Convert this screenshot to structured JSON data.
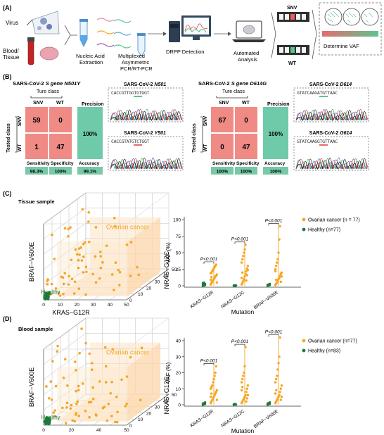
{
  "panel_labels": {
    "a": "(A)",
    "b": "(B)",
    "c": "(C)",
    "d": "(D)"
  },
  "workflow": {
    "virus": "Virus",
    "blood_tissue_1": "Blood/",
    "blood_tissue_2": "Tissue",
    "extraction_1": "Nucleic Acid",
    "extraction_2": "Extraction",
    "pcr_1": "Multiplexed",
    "pcr_2": "Asymmetric",
    "pcr_3": "PCR/RT-PCR",
    "drpp": "DRPP Detection",
    "auto_1": "Automated",
    "auto_2": "Analysis",
    "snv": "SNV",
    "wt": "WT",
    "vaf": "Determine VAF"
  },
  "confusion_left": {
    "title_prefix": "SARS-CoV-2 ",
    "title_italic": "S gene N501Y",
    "true_class": "Ture class",
    "tested_class": "Tested class",
    "col_snv": "SNV",
    "col_wt": "WT",
    "row_snv": "SNV",
    "row_wt": "WT",
    "precision_label": "Precision",
    "cells": [
      "59",
      "0",
      "1",
      "47"
    ],
    "precision": "100%",
    "sensitivity_label": "Sensitivity",
    "specificity_label": "Specificity",
    "accuracy_label": "Accuracy",
    "sensitivity": "98.3%",
    "specificity": "100%",
    "accuracy": "99.1%",
    "trace1_prefix": "SARS-CoV-2 ",
    "trace1_italic": "N501",
    "trace1_seq": "CACCGTTGGTGTGGT",
    "trace2_prefix": "SARS-CoV-2 ",
    "trace2_italic": "Y501",
    "trace2_seq": "CACCGTATGTCTGGT"
  },
  "confusion_right": {
    "title_prefix": "SARS-CoV-2 ",
    "title_italic": "S gene D614G",
    "true_class": "Ture class",
    "tested_class": "Tested class",
    "col_snv": "SNV",
    "col_wt": "WT",
    "row_snv": "SNV",
    "row_wt": "WT",
    "precision_label": "Precision",
    "cells": [
      "67",
      "0",
      "0",
      "47"
    ],
    "precision": "100%",
    "sensitivity_label": "Sensitivity",
    "specificity_label": "Specificity",
    "accuracy_label": "Accuracy",
    "sensitivity": "100%",
    "specificity": "100%",
    "accuracy": "100%",
    "trace1_prefix": "SARS-CoV-2 ",
    "trace1_italic": "D614",
    "trace1_seq": "GTATCAAGATGTTAAC",
    "trace2_prefix": "SARS-CoV-2 ",
    "trace2_italic": "G614",
    "trace2_seq": "GTATCAAGGTGTTAAC"
  },
  "section_c": "Tissue sample",
  "section_d": "Blood sample",
  "scatter3d_c": {
    "xlabel": "KRAS−G12R",
    "ylabel": "NRAS−G12C",
    "zlabel": "BRAF−V600E",
    "ovarian_label": "Ovarian cancer",
    "healthy_label": "Healthy",
    "x_ticks": [
      "0",
      "10",
      "20",
      "30",
      "40",
      "50"
    ],
    "y_ticks": [
      "0",
      "10",
      "20",
      "30",
      "40",
      "50"
    ],
    "z_ticks": []
  },
  "scatter3d_d": {
    "xlabel": "KRAS−G12R",
    "ylabel": "NRAS−G12C",
    "zlabel": "BRAF−V600E",
    "ovarian_label": "Ovarian cancer",
    "healthy_label": "Healthy",
    "x_ticks": [
      "0",
      "20",
      "40",
      "50"
    ],
    "y_ticks": [
      "0",
      "10",
      "20",
      "30",
      "40",
      "50"
    ],
    "z_ticks": []
  },
  "colors": {
    "snv_cell": "#ef8a85",
    "precision_cell": "#6fcaa9",
    "metric_cell": "#78c9a8",
    "ovarian": "#f5a623",
    "healthy": "#1f7a3a"
  },
  "chart_data": [
    {
      "type": "scatter",
      "ylabel": "VAF (%)",
      "xlabel": "Mutation",
      "categories": [
        "KRAS−G12R",
        "NRAS−G12C",
        "BRAF−V600E"
      ],
      "ylim": [
        0,
        100
      ],
      "y_ticks": [
        0,
        25,
        50,
        75,
        100
      ],
      "legend": {
        "placement": "top-right"
      },
      "p_labels": [
        "P<0.001",
        "P<0.001",
        "P<0.001"
      ],
      "series": [
        {
          "name": "Ovarian cancer (n = 77)",
          "color": "#f5a623",
          "max": [
            32,
            62,
            90
          ],
          "values": [
            [
              2,
              4,
              6,
              8,
              10,
              12,
              14,
              15,
              17,
              19,
              20,
              22,
              24,
              26,
              28,
              30,
              32,
              5,
              9,
              13
            ],
            [
              2,
              4,
              7,
              10,
              14,
              18,
              22,
              26,
              30,
              35,
              40,
              45,
              50,
              55,
              62,
              8,
              16,
              24,
              12,
              20
            ],
            [
              1,
              3,
              5,
              8,
              10,
              12,
              15,
              18,
              20,
              25,
              30,
              35,
              40,
              50,
              70,
              90,
              6,
              14,
              22,
              9
            ]
          ]
        },
        {
          "name": "Healthy (n=77)",
          "color": "#1f7a3a",
          "max": [
            5,
            1,
            3
          ],
          "values": [
            [
              0,
              0.5,
              1,
              1.5,
              2,
              3,
              4,
              5
            ],
            [
              0,
              0,
              0.5,
              0.5,
              1,
              0.3
            ],
            [
              0,
              0.5,
              1,
              1.5,
              2,
              3
            ]
          ]
        }
      ]
    },
    {
      "type": "scatter",
      "ylabel": "VAF (%)",
      "xlabel": "Mutation",
      "categories": [
        "KRAS−G12R",
        "NRAS−G12C",
        "BRAF−V600E"
      ],
      "ylim": [
        0,
        40
      ],
      "y_ticks": [
        0,
        10,
        20,
        30,
        40
      ],
      "legend": {
        "placement": "top-right"
      },
      "p_labels": [
        "P<0.001",
        "P<0.001",
        "P<0.001"
      ],
      "series": [
        {
          "name": "Ovarian cancer (n=77)",
          "color": "#f5a623",
          "max": [
            24,
            36,
            42
          ],
          "values": [
            [
              1,
              2,
              3,
              4,
              5,
              6,
              7,
              8,
              9,
              10,
              11,
              12,
              14,
              16,
              18,
              20,
              24,
              3,
              5,
              7
            ],
            [
              1,
              2,
              3,
              4,
              5,
              6,
              8,
              10,
              12,
              14,
              16,
              18,
              20,
              24,
              36,
              2,
              4,
              6,
              9,
              11
            ],
            [
              1,
              2,
              3,
              4,
              5,
              6,
              8,
              10,
              12,
              14,
              16,
              18,
              22,
              26,
              30,
              42,
              3,
              5,
              7,
              9
            ]
          ]
        },
        {
          "name": "Healthy (n=83)",
          "color": "#1f7a3a",
          "max": [
            1.5,
            0.5,
            1.5
          ],
          "values": [
            [
              0,
              0.3,
              0.5,
              0.8,
              1,
              1.5
            ],
            [
              0,
              0.1,
              0.2,
              0.3,
              0.5
            ],
            [
              0,
              0.3,
              0.5,
              0.8,
              1,
              1.5
            ]
          ]
        }
      ]
    }
  ]
}
